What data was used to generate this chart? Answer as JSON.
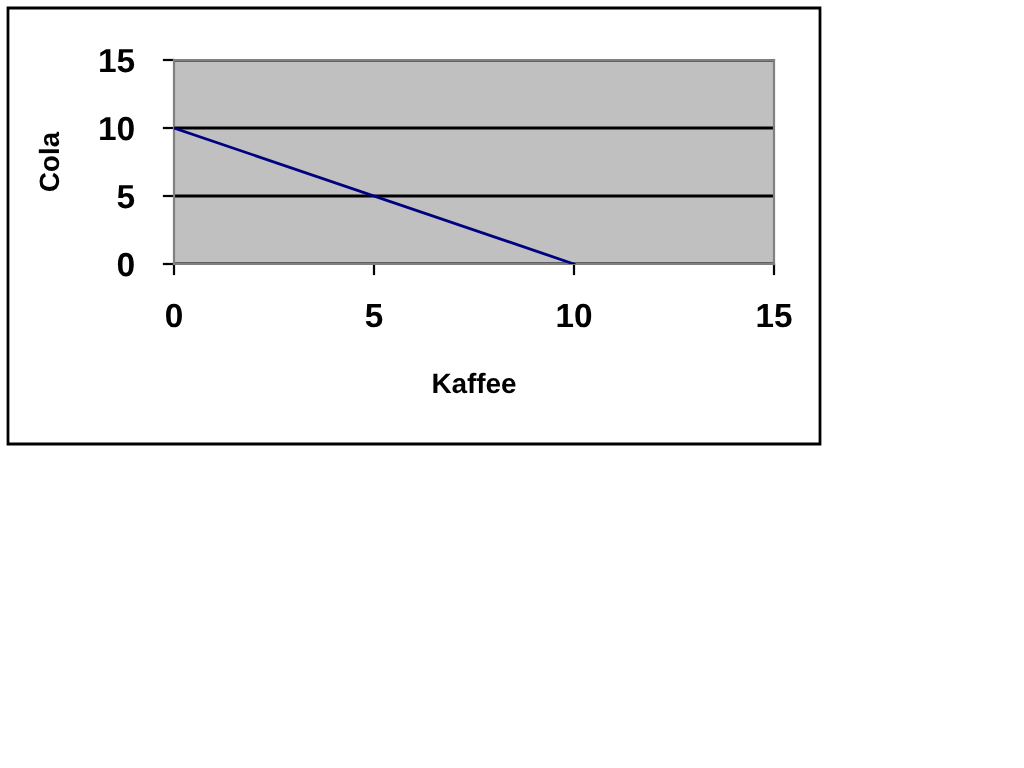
{
  "chart_data": {
    "type": "line",
    "xlabel": "Kaffee",
    "ylabel": "Cola",
    "x": [
      0,
      10
    ],
    "series": [
      {
        "color": "#000080",
        "values": [
          10,
          0
        ]
      }
    ],
    "xlim": [
      0,
      15
    ],
    "xticks": [
      0,
      5,
      10,
      15
    ],
    "ylim": [
      0,
      15
    ],
    "yticks": [
      0,
      5,
      10,
      15
    ],
    "grid": "y",
    "marker": "none",
    "line_style": "solid"
  }
}
